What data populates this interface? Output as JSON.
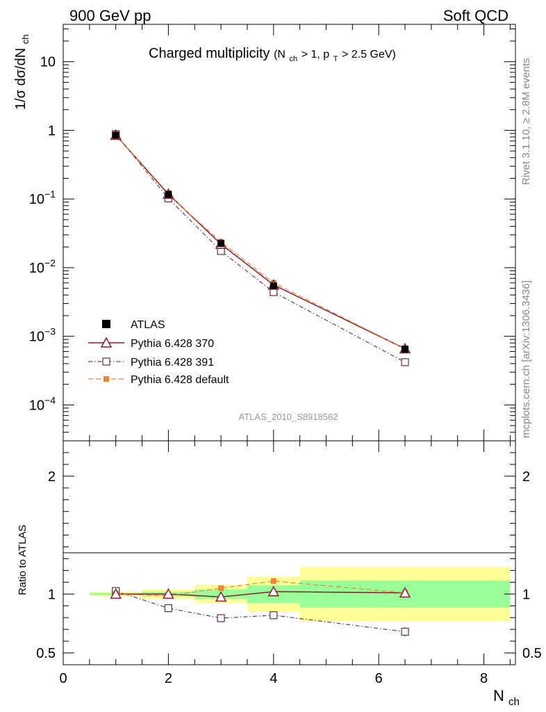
{
  "header": {
    "left": "900 GeV pp",
    "right": "Soft QCD"
  },
  "side_labels": {
    "rivet": "Rivet 3.1.10, ≥ 2.8M events",
    "mcplots": "mcplots.cern.ch [arXiv:1306.3436]"
  },
  "chart_data": [
    {
      "type": "line",
      "panel": "main",
      "title": "Charged multiplicity",
      "title_cuts": {
        "n_prefix": "(N",
        "n_sub": "ch",
        "n_rest": " > 1, p",
        "pt_sub": "T",
        "pt_rest": " > 2.5 GeV)"
      },
      "ylabel": {
        "prefix": "1/σ dσ/dN",
        "sub": "ch"
      },
      "yscale": "log",
      "ylim": [
        3e-05,
        35
      ],
      "xlim": [
        0,
        8.6
      ],
      "y_ticks": [
        {
          "value": 10,
          "label": "10"
        },
        {
          "value": 1,
          "label": "1"
        },
        {
          "value": 0.1,
          "base": "10",
          "exp": "−1"
        },
        {
          "value": 0.01,
          "base": "10",
          "exp": "−2"
        },
        {
          "value": 0.001,
          "base": "10",
          "exp": "−3"
        },
        {
          "value": 0.0001,
          "base": "10",
          "exp": "−4"
        }
      ],
      "analysis_tag": "ATLAS_2010_S8918562",
      "x": [
        1,
        2,
        3,
        4,
        6.5
      ],
      "series": [
        {
          "name": "ATLAS",
          "values": [
            0.85,
            0.117,
            0.0225,
            0.0054,
            0.00065
          ],
          "style": "data"
        },
        {
          "name": "Pythia 6.428 370",
          "values": [
            0.85,
            0.118,
            0.022,
            0.0056,
            0.00066
          ],
          "style": "triangle"
        },
        {
          "name": "Pythia 6.428 391",
          "values": [
            0.88,
            0.102,
            0.0175,
            0.0044,
            0.00042
          ],
          "style": "square_open"
        },
        {
          "name": "Pythia 6.428 default",
          "values": [
            0.85,
            0.114,
            0.0237,
            0.006,
            0.00066
          ],
          "style": "square_filled"
        }
      ],
      "legend_position": "bottom-left"
    },
    {
      "type": "line",
      "panel": "ratio",
      "ylabel": "Ratio to ATLAS",
      "ylim": [
        0.4,
        2.3
      ],
      "xlim": [
        0,
        8.6
      ],
      "xlabel": {
        "base": "N",
        "sub": "ch"
      },
      "y_ticks": [
        {
          "value": 0.5,
          "label": "0.5"
        },
        {
          "value": 1,
          "label": "1"
        },
        {
          "value": 2,
          "label": "2"
        }
      ],
      "x_ticks": [
        {
          "value": 0,
          "label": "0"
        },
        {
          "value": 2,
          "label": "2"
        },
        {
          "value": 4,
          "label": "4"
        },
        {
          "value": 6,
          "label": "6"
        },
        {
          "value": 8,
          "label": "8"
        }
      ],
      "bands": [
        {
          "x0": 0.5,
          "x1": 1.5,
          "yellow": [
            0.98,
            1.02
          ],
          "green": [
            0.99,
            1.01
          ]
        },
        {
          "x0": 1.5,
          "x1": 2.5,
          "yellow": [
            0.96,
            1.04
          ],
          "green": [
            0.98,
            1.02
          ]
        },
        {
          "x0": 2.5,
          "x1": 3.5,
          "yellow": [
            0.92,
            1.08
          ],
          "green": [
            0.96,
            1.04
          ]
        },
        {
          "x0": 3.5,
          "x1": 4.5,
          "yellow": [
            0.85,
            1.15
          ],
          "green": [
            0.925,
            1.075
          ]
        },
        {
          "x0": 4.5,
          "x1": 8.5,
          "yellow": [
            0.77,
            1.23
          ],
          "green": [
            0.885,
            1.115
          ]
        }
      ],
      "x": [
        1,
        2,
        3,
        4,
        6.5
      ],
      "series": [
        {
          "name": "Pythia 6.428 370",
          "values": [
            1.0,
            1.0,
            0.975,
            1.02,
            1.01
          ],
          "style": "triangle"
        },
        {
          "name": "Pythia 6.428 391",
          "values": [
            1.025,
            0.88,
            0.795,
            0.82,
            0.68
          ],
          "style": "square_open"
        },
        {
          "name": "Pythia 6.428 default",
          "values": [
            1.0,
            0.985,
            1.05,
            1.11,
            1.01
          ],
          "style": "square_filled"
        }
      ]
    }
  ],
  "colors": {
    "atlas": "#000000",
    "p370": "#8b1a2b",
    "p391": "#6e3a55",
    "pdefault": "#f08232",
    "band_yellow": "#ffff99",
    "band_green": "#99ff99"
  }
}
